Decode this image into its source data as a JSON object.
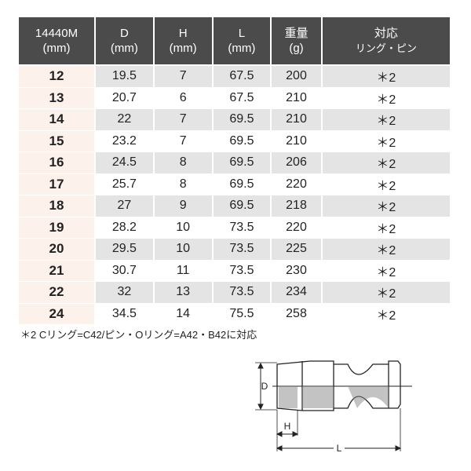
{
  "headers": [
    {
      "l1": "14440M",
      "l2": "(mm)"
    },
    {
      "l1": "D",
      "l2": "(mm)"
    },
    {
      "l1": "H",
      "l2": "(mm)"
    },
    {
      "l1": "L",
      "l2": "(mm)"
    },
    {
      "l1": "重量",
      "l2": "(g)"
    },
    {
      "l1": "対応",
      "l2": "リング・ピン"
    }
  ],
  "rows": [
    [
      "12",
      "19.5",
      "7",
      "67.5",
      "200",
      "＊2"
    ],
    [
      "13",
      "20.7",
      "6",
      "67.5",
      "210",
      "＊2"
    ],
    [
      "14",
      "22",
      "7",
      "69.5",
      "210",
      "＊2"
    ],
    [
      "15",
      "23.2",
      "7",
      "69.5",
      "210",
      "＊2"
    ],
    [
      "16",
      "24.5",
      "8",
      "69.5",
      "206",
      "＊2"
    ],
    [
      "17",
      "25.7",
      "8",
      "69.5",
      "220",
      "＊2"
    ],
    [
      "18",
      "27",
      "9",
      "69.5",
      "218",
      "＊2"
    ],
    [
      "19",
      "28.2",
      "10",
      "73.5",
      "220",
      "＊2"
    ],
    [
      "20",
      "29.5",
      "10",
      "73.5",
      "225",
      "＊2"
    ],
    [
      "21",
      "30.7",
      "11",
      "73.5",
      "230",
      "＊2"
    ],
    [
      "22",
      "32",
      "13",
      "73.5",
      "234",
      "＊2"
    ],
    [
      "24",
      "34.5",
      "14",
      "75.5",
      "258",
      "＊2"
    ]
  ],
  "note": "＊2 Cリング=C42/ピン・Oリング=A42・B42に対応",
  "diagram": {
    "d_label": "D",
    "h_label": "H",
    "l_label": "L"
  },
  "colors": {
    "header_bg": "#4b4b4b",
    "size_col_bg": "#fdf1ec",
    "alt_row_bg": "#e4e4e4"
  }
}
